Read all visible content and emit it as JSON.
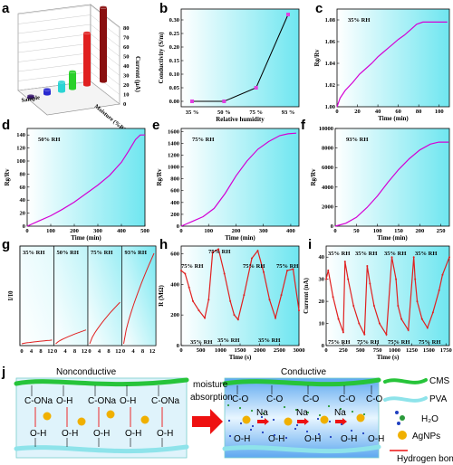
{
  "panel_labels": [
    "a",
    "b",
    "c",
    "d",
    "e",
    "f",
    "g",
    "h",
    "i",
    "j"
  ],
  "colors": {
    "curve": "#d400d4",
    "red": "#e02020",
    "cyan_bg": "#7fe9f2",
    "mark": "#e040e0",
    "axis": "#000000"
  },
  "chart_data": [
    {
      "id": "a",
      "type": "bar3d",
      "ylabel": "Current (μA)",
      "ticks": [
        "0",
        "10",
        "20",
        "30",
        "40",
        "50",
        "60",
        "70",
        "80"
      ],
      "xlabel": "Moisture (%RH)",
      "zlabel": "Sample",
      "values": [
        2,
        5,
        10,
        18,
        55,
        78
      ],
      "colors": [
        "#3b1a6e",
        "#2a2ad0",
        "#2ad4d4",
        "#2ad02a",
        "#e02020",
        "#8a1010"
      ]
    },
    {
      "id": "b",
      "type": "line",
      "xlabel": "Relative humidity",
      "ylabel": "Conductivity (S/m)",
      "categories": [
        "35 %",
        "50 %",
        "75 %",
        "93 %"
      ],
      "values": [
        0.0,
        0.0,
        0.05,
        0.32
      ],
      "ylim": [
        -0.02,
        0.34
      ],
      "yticks": [
        "0.00",
        "0.05",
        "0.10",
        "0.15",
        "0.20",
        "0.25",
        "0.30"
      ]
    },
    {
      "id": "c",
      "type": "line",
      "annotation": "35% RH",
      "xlabel": "Time (min)",
      "ylabel": "Rg/Rv",
      "xlim": [
        0,
        110
      ],
      "ylim": [
        1.0,
        1.09
      ],
      "xticks": [
        "0",
        "20",
        "40",
        "60",
        "80",
        "100"
      ],
      "yticks": [
        "1.00",
        "1.02",
        "1.04",
        "1.06",
        "1.08"
      ],
      "x": [
        0,
        3,
        8,
        15,
        22,
        28,
        34,
        40,
        45,
        50,
        55,
        60,
        66,
        72,
        78,
        84,
        90,
        100,
        108
      ],
      "y": [
        1.0,
        1.008,
        1.015,
        1.022,
        1.03,
        1.035,
        1.04,
        1.046,
        1.05,
        1.054,
        1.058,
        1.062,
        1.066,
        1.071,
        1.076,
        1.078,
        1.078,
        1.078,
        1.078
      ]
    },
    {
      "id": "d",
      "type": "line",
      "annotation": "50% RH",
      "xlabel": "Time (min)",
      "ylabel": "Rg/Rv",
      "xlim": [
        0,
        500
      ],
      "ylim": [
        0,
        150
      ],
      "xticks": [
        "0",
        "100",
        "200",
        "300",
        "400",
        "500"
      ],
      "yticks": [
        "0",
        "20",
        "40",
        "60",
        "80",
        "100",
        "120",
        "140"
      ],
      "x": [
        0,
        50,
        100,
        150,
        200,
        250,
        300,
        350,
        400,
        430,
        460,
        480,
        500
      ],
      "y": [
        0,
        8,
        16,
        26,
        37,
        50,
        63,
        78,
        98,
        115,
        133,
        140,
        140
      ]
    },
    {
      "id": "e",
      "type": "line",
      "annotation": "75% RH",
      "xlabel": "Time (min)",
      "ylabel": "Rg/Rv",
      "xlim": [
        0,
        430
      ],
      "ylim": [
        0,
        1650
      ],
      "xticks": [
        "0",
        "100",
        "200",
        "300",
        "400"
      ],
      "yticks": [
        "0",
        "200",
        "400",
        "600",
        "800",
        "1000",
        "1200",
        "1400",
        "1600"
      ],
      "x": [
        0,
        40,
        80,
        120,
        160,
        200,
        240,
        280,
        320,
        360,
        390,
        420
      ],
      "y": [
        0,
        80,
        160,
        300,
        550,
        850,
        1100,
        1300,
        1430,
        1530,
        1560,
        1570
      ]
    },
    {
      "id": "f",
      "type": "line",
      "annotation": "93% RH",
      "xlabel": "Time (min)",
      "ylabel": "Rg/Rv",
      "xlim": [
        0,
        270
      ],
      "ylim": [
        0,
        10000
      ],
      "xticks": [
        "0",
        "50",
        "100",
        "150",
        "200",
        "250"
      ],
      "yticks": [
        "0",
        "2000",
        "4000",
        "6000",
        "8000",
        "10000"
      ],
      "x": [
        0,
        25,
        50,
        75,
        100,
        125,
        150,
        175,
        200,
        225,
        245,
        260,
        268
      ],
      "y": [
        0,
        300,
        900,
        1900,
        3100,
        4500,
        5800,
        6900,
        7800,
        8400,
        8600,
        8600,
        8600
      ]
    },
    {
      "id": "g",
      "type": "line",
      "ylabel": "I/I0",
      "xticks": [
        "0",
        "4",
        "8",
        "12"
      ],
      "segments": [
        "35% RH",
        "50% RH",
        "75% RH",
        "93% RH"
      ]
    },
    {
      "id": "h",
      "type": "line",
      "xlabel": "Time (s)",
      "ylabel": "R (MΩ)",
      "xlim": [
        0,
        3000
      ],
      "ylim": [
        0,
        650
      ],
      "xticks": [
        "0",
        "500",
        "1000",
        "1500",
        "2000",
        "2500",
        "3000"
      ],
      "yticks": [
        "0",
        "200",
        "400",
        "600"
      ],
      "annotations": [
        "75% RH",
        "75% RH",
        "75% RH",
        "75% RH",
        "35% RH",
        "35% RH",
        "35% RH"
      ],
      "x": [
        0,
        100,
        200,
        300,
        450,
        600,
        700,
        800,
        950,
        1100,
        1250,
        1350,
        1450,
        1600,
        1800,
        1950,
        2100,
        2250,
        2400,
        2550,
        2700,
        2850,
        3000
      ],
      "y": [
        490,
        470,
        380,
        290,
        230,
        180,
        300,
        610,
        630,
        470,
        290,
        200,
        170,
        330,
        570,
        620,
        480,
        300,
        180,
        330,
        490,
        500,
        230
      ]
    },
    {
      "id": "i",
      "type": "line",
      "xlabel": "Time (s)",
      "ylabel": "Current (nA)",
      "xlim": [
        0,
        1800
      ],
      "ylim": [
        0,
        45
      ],
      "xticks": [
        "0",
        "250",
        "500",
        "750",
        "1000",
        "1250",
        "1500",
        "1750"
      ],
      "yticks": [
        "0",
        "10",
        "20",
        "30",
        "40"
      ],
      "annotations": [
        "35% RH",
        "35% RH",
        "35% RH",
        "35% RH",
        "75% RH",
        "75% RH",
        "75% RH",
        "75% RH"
      ],
      "x": [
        0,
        30,
        100,
        180,
        250,
        275,
        320,
        400,
        480,
        560,
        600,
        640,
        700,
        780,
        880,
        960,
        1020,
        1050,
        1100,
        1200,
        1280,
        1300,
        1330,
        1400,
        1480,
        1560,
        1650,
        1700,
        1800
      ],
      "y": [
        30,
        34,
        22,
        12,
        6,
        38,
        30,
        18,
        10,
        5,
        36,
        28,
        18,
        10,
        5,
        40,
        30,
        18,
        12,
        7,
        40,
        30,
        20,
        12,
        8,
        15,
        25,
        32,
        40
      ]
    }
  ],
  "diagram": {
    "left_title": "Nonconductive",
    "right_title": "Conductive",
    "arrow_text": [
      "moisture",
      "absorption"
    ],
    "legend": [
      "CMS",
      "PVA",
      "H₂O",
      "AgNPs",
      "Hydrogen bond"
    ],
    "groups": [
      "C-ONa",
      "O-H",
      "C-O",
      "Na",
      "Ag"
    ]
  }
}
